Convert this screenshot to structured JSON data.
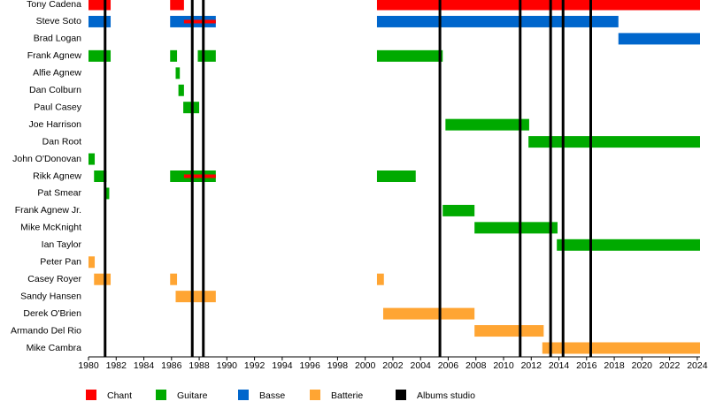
{
  "chart_data": {
    "type": "timeline",
    "categories": [
      "Tony Cadena",
      "Steve Soto",
      "Brad Logan",
      "Frank Agnew",
      "Alfie Agnew",
      "Dan Colburn",
      "Paul Casey",
      "Joe Harrison",
      "Dan Root",
      "John O'Donovan",
      "Rikk Agnew",
      "Pat Smear",
      "Frank Agnew Jr.",
      "Mike McKnight",
      "Ian Taylor",
      "Peter Pan",
      "Casey Royer",
      "Sandy Hansen",
      "Derek O'Brien",
      "Armando Del Rio",
      "Mike Cambra"
    ],
    "xlim": [
      1980,
      2024.2
    ],
    "xticks": [
      1980,
      1982,
      1984,
      1986,
      1988,
      1990,
      1992,
      1994,
      1996,
      1998,
      2000,
      2002,
      2004,
      2006,
      2008,
      2010,
      2012,
      2014,
      2016,
      2018,
      2020,
      2022,
      2024
    ],
    "series": [
      {
        "name": "Chant",
        "color": "#ff0000",
        "segments": [
          {
            "category": "Tony Cadena",
            "start": 1980,
            "end": 1981.6
          },
          {
            "category": "Tony Cadena",
            "start": 1985.9,
            "end": 1986.9
          },
          {
            "category": "Tony Cadena",
            "start": 2000.85,
            "end": 2024.2
          },
          {
            "category": "Steve Soto",
            "start": 1986.9,
            "end": 1989.2,
            "overlay": true
          },
          {
            "category": "Rikk Agnew",
            "start": 1986.9,
            "end": 1989.2,
            "overlay": true
          }
        ]
      },
      {
        "name": "Guitare",
        "color": "#00aa00",
        "segments": [
          {
            "category": "Frank Agnew",
            "start": 1980,
            "end": 1981.6
          },
          {
            "category": "Frank Agnew",
            "start": 1985.9,
            "end": 1986.4
          },
          {
            "category": "Frank Agnew",
            "start": 1987.9,
            "end": 1989.2
          },
          {
            "category": "Frank Agnew",
            "start": 2000.85,
            "end": 2005.6
          },
          {
            "category": "Alfie Agnew",
            "start": 1986.3,
            "end": 1986.6
          },
          {
            "category": "Dan Colburn",
            "start": 1986.5,
            "end": 1986.9
          },
          {
            "category": "Paul Casey",
            "start": 1986.85,
            "end": 1988
          },
          {
            "category": "Joe Harrison",
            "start": 2005.8,
            "end": 2011.85
          },
          {
            "category": "Dan Root",
            "start": 2011.8,
            "end": 2024.2
          },
          {
            "category": "John O'Donovan",
            "start": 1980,
            "end": 1980.45
          },
          {
            "category": "Rikk Agnew",
            "start": 1980.4,
            "end": 1981.3
          },
          {
            "category": "Rikk Agnew",
            "start": 1985.9,
            "end": 1989.2
          },
          {
            "category": "Rikk Agnew",
            "start": 2000.85,
            "end": 2003.65
          },
          {
            "category": "Pat Smear",
            "start": 1981.2,
            "end": 1981.5
          },
          {
            "category": "Frank Agnew Jr.",
            "start": 2005.6,
            "end": 2007.9
          },
          {
            "category": "Mike McKnight",
            "start": 2007.9,
            "end": 2013.9
          },
          {
            "category": "Ian Taylor",
            "start": 2013.85,
            "end": 2024.2
          }
        ]
      },
      {
        "name": "Basse",
        "color": "#0066cc",
        "segments": [
          {
            "category": "Steve Soto",
            "start": 1980,
            "end": 1981.6
          },
          {
            "category": "Steve Soto",
            "start": 1985.9,
            "end": 1989.2
          },
          {
            "category": "Steve Soto",
            "start": 2000.85,
            "end": 2018.3
          },
          {
            "category": "Brad Logan",
            "start": 2018.3,
            "end": 2024.2
          }
        ]
      },
      {
        "name": "Batterie",
        "color": "#ffa533",
        "segments": [
          {
            "category": "Peter Pan",
            "start": 1980,
            "end": 1980.45
          },
          {
            "category": "Casey Royer",
            "start": 1980.4,
            "end": 1981.6
          },
          {
            "category": "Casey Royer",
            "start": 1985.9,
            "end": 1986.4
          },
          {
            "category": "Casey Royer",
            "start": 2000.85,
            "end": 2001.35
          },
          {
            "category": "Sandy Hansen",
            "start": 1986.3,
            "end": 1989.2
          },
          {
            "category": "Derek O'Brien",
            "start": 2001.3,
            "end": 2007.9
          },
          {
            "category": "Armando Del Rio",
            "start": 2007.9,
            "end": 2012.9
          },
          {
            "category": "Mike Cambra",
            "start": 2012.8,
            "end": 2024.2
          }
        ]
      }
    ],
    "events": {
      "name": "Albums studio",
      "color": "#000000",
      "values": [
        1981.2,
        1987.5,
        1988.3,
        2005.4,
        2011.2,
        2013.4,
        2014.3,
        2016.3
      ]
    }
  }
}
